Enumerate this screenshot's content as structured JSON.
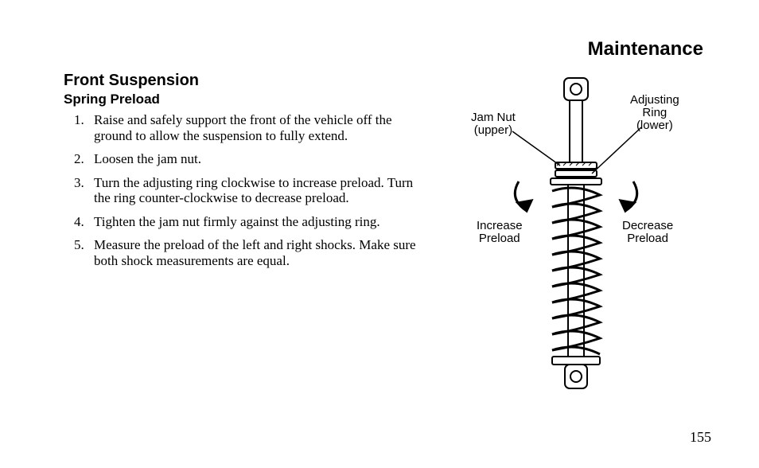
{
  "header": {
    "title": "Maintenance"
  },
  "section": {
    "title": "Front Suspension",
    "subtitle": "Spring Preload",
    "steps": [
      "Raise and safely support the front of the vehicle off the ground to allow the suspension to fully extend.",
      "Loosen the jam nut.",
      "Turn the adjusting ring clockwise to increase preload. Turn the ring counter-clockwise to decrease preload.",
      "Tighten the jam nut firmly against the adjusting ring.",
      "Measure the preload of the left and right shocks. Make sure both shock measurements are equal."
    ]
  },
  "figure": {
    "labels": {
      "jam_nut": "Jam Nut\n(upper)",
      "adjusting_ring": "Adjusting\nRing\n(lower)",
      "increase": "Increase\nPreload",
      "decrease": "Decrease\nPreload"
    },
    "diagram": {
      "type": "technical-illustration",
      "description": "shock-absorber-with-coil-spring",
      "stroke_color": "#000000",
      "fill_color": "#ffffff",
      "coil_turns": 11,
      "has_top_eyelet": true,
      "has_bottom_eyelet": true,
      "arrows": [
        {
          "name": "increase-arrow",
          "direction": "clockwise",
          "side": "left"
        },
        {
          "name": "decrease-arrow",
          "direction": "counter-clockwise",
          "side": "right"
        }
      ],
      "leader_lines": [
        {
          "from": "jam-nut-label",
          "to": "jam-nut"
        },
        {
          "from": "adjusting-ring-label",
          "to": "adjusting-ring"
        }
      ]
    }
  },
  "page_number": "155"
}
